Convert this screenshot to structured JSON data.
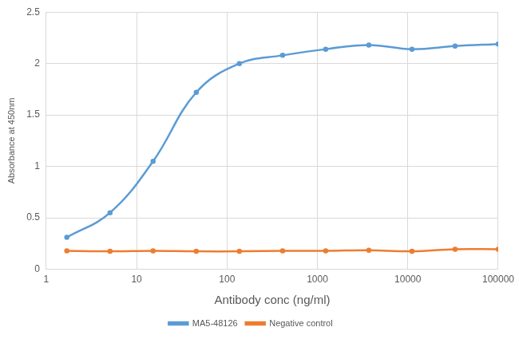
{
  "chart_data": {
    "type": "line",
    "x_label": "Antibody conc (ng/ml)",
    "y_label": "Absorbance at 450nm",
    "x": [
      1.69,
      5.08,
      15.2,
      45.7,
      137,
      412,
      1235,
      3704,
      11111,
      33333,
      100000
    ],
    "series": [
      {
        "name": "MA5-48126",
        "color": "#5b9bd5",
        "marker": "circle",
        "line_style": "smooth",
        "values": [
          0.31,
          0.55,
          1.05,
          1.72,
          2.0,
          2.08,
          2.14,
          2.18,
          2.14,
          2.17,
          2.19
        ]
      },
      {
        "name": "Negative control",
        "color": "#ed7d31",
        "marker": "circle",
        "line_style": "smooth",
        "values": [
          0.18,
          0.175,
          0.18,
          0.175,
          0.175,
          0.18,
          0.18,
          0.185,
          0.175,
          0.195,
          0.195
        ]
      }
    ],
    "log": "x",
    "xlim": [
      1,
      100000
    ],
    "xticks": [
      1,
      10,
      100,
      1000,
      10000,
      100000
    ],
    "ylim": [
      0,
      2.5
    ],
    "yticks": [
      0,
      0.5,
      1,
      1.5,
      2,
      2.5
    ],
    "grid": true,
    "legend": "bottom"
  }
}
